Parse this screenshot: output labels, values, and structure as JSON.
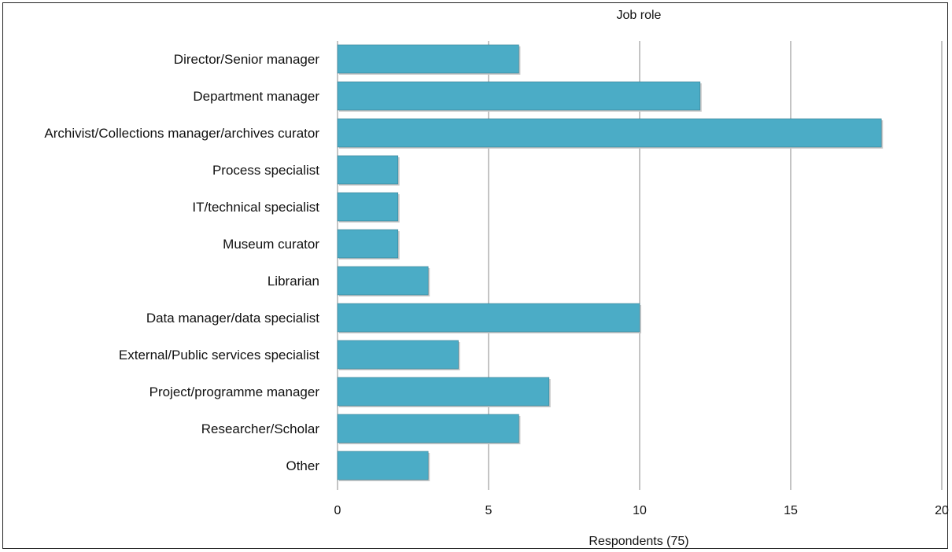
{
  "chart_data": {
    "type": "bar",
    "orientation": "horizontal",
    "title": "Job role",
    "xlabel": "Respondents (75)",
    "ylabel": "",
    "xlim": [
      0,
      20
    ],
    "xticks": [
      0,
      5,
      10,
      15,
      20
    ],
    "grid": "vertical",
    "categories": [
      "Director/Senior manager",
      "Department manager",
      "Archivist/Collections manager/archives curator",
      "Process specialist",
      "IT/technical specialist",
      "Museum curator",
      "Librarian",
      "Data manager/data specialist",
      "External/Public services specialist",
      "Project/programme manager",
      "Researcher/Scholar",
      "Other"
    ],
    "values": [
      6,
      12,
      18,
      2,
      2,
      2,
      3,
      10,
      4,
      7,
      6,
      3
    ],
    "bar_color": "#4bacc6",
    "bar_edge_color": "#357f93",
    "grid_color": "#888888"
  }
}
